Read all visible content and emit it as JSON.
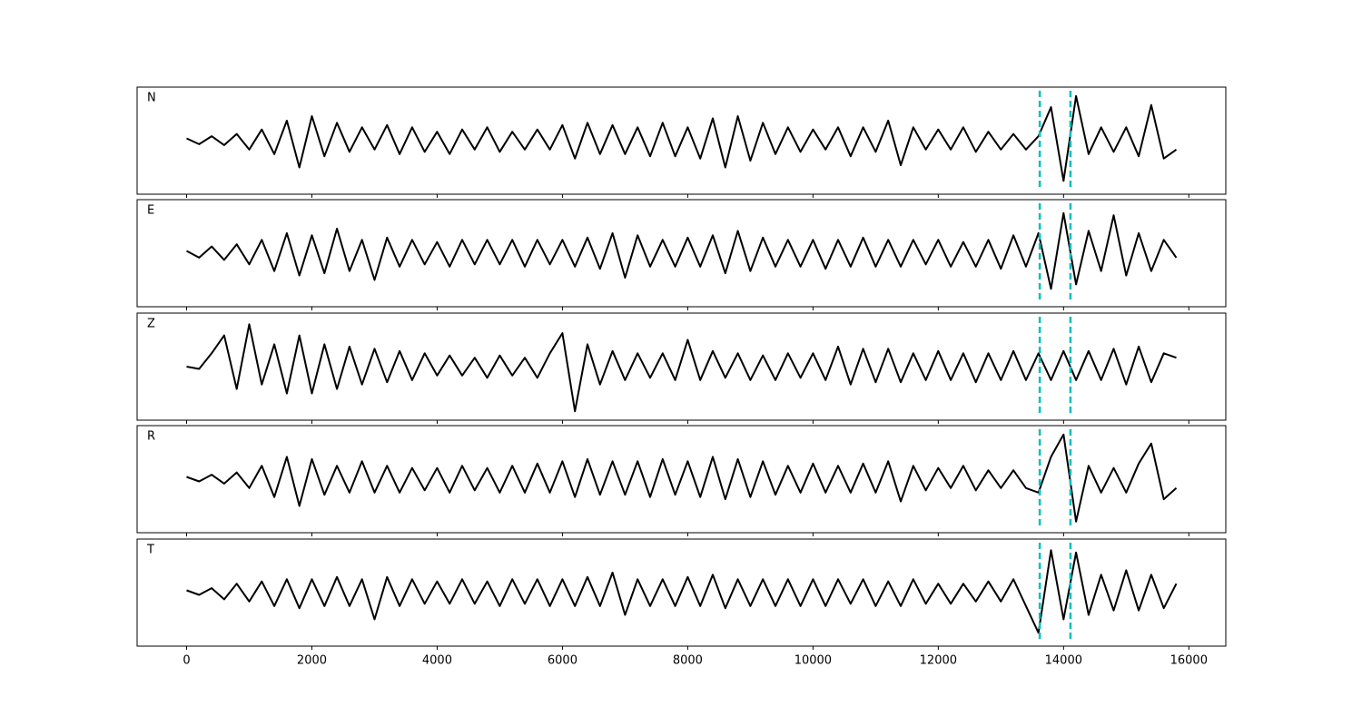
{
  "chart_data": {
    "type": "line",
    "layout": "stacked",
    "x": [
      0,
      200,
      400,
      600,
      800,
      1000,
      1200,
      1400,
      1600,
      1800,
      2000,
      2200,
      2400,
      2600,
      2800,
      3000,
      3200,
      3400,
      3600,
      3800,
      4000,
      4200,
      4400,
      4600,
      4800,
      5000,
      5200,
      5400,
      5600,
      5800,
      6000,
      6200,
      6400,
      6600,
      6800,
      7000,
      7200,
      7400,
      7600,
      7800,
      8000,
      8200,
      8400,
      8600,
      8800,
      9000,
      9200,
      9400,
      9600,
      9800,
      10000,
      10200,
      10400,
      10600,
      10800,
      11000,
      11200,
      11400,
      11600,
      11800,
      12000,
      12200,
      12400,
      12600,
      12800,
      13000,
      13200,
      13400,
      13600,
      13800,
      14000,
      14200,
      14400,
      14600,
      14800,
      15000,
      15200,
      15400,
      15600,
      15800
    ],
    "series": [
      {
        "name": "N",
        "color": "#000000",
        "values": [
          0.05,
          -0.08,
          0.1,
          -0.1,
          0.15,
          -0.2,
          0.25,
          -0.3,
          0.45,
          -0.6,
          0.55,
          -0.35,
          0.4,
          -0.25,
          0.3,
          -0.2,
          0.35,
          -0.3,
          0.3,
          -0.25,
          0.2,
          -0.3,
          0.25,
          -0.2,
          0.3,
          -0.25,
          0.2,
          -0.2,
          0.25,
          -0.2,
          0.35,
          -0.4,
          0.4,
          -0.3,
          0.35,
          -0.3,
          0.3,
          -0.35,
          0.4,
          -0.35,
          0.3,
          -0.4,
          0.5,
          -0.6,
          0.55,
          -0.45,
          0.4,
          -0.3,
          0.3,
          -0.25,
          0.25,
          -0.2,
          0.3,
          -0.35,
          0.3,
          -0.25,
          0.45,
          -0.55,
          0.3,
          -0.2,
          0.25,
          -0.2,
          0.3,
          -0.25,
          0.2,
          -0.2,
          0.15,
          -0.2,
          0.1,
          0.75,
          -0.9,
          1.0,
          -0.3,
          0.3,
          -0.25,
          0.3,
          -0.35,
          0.8,
          -0.4,
          -0.2
        ]
      },
      {
        "name": "E",
        "color": "#000000",
        "values": [
          0.05,
          -0.1,
          0.15,
          -0.15,
          0.2,
          -0.25,
          0.3,
          -0.4,
          0.45,
          -0.5,
          0.4,
          -0.45,
          0.55,
          -0.4,
          0.3,
          -0.6,
          0.35,
          -0.3,
          0.3,
          -0.25,
          0.25,
          -0.3,
          0.3,
          -0.25,
          0.3,
          -0.25,
          0.3,
          -0.3,
          0.3,
          -0.25,
          0.3,
          -0.3,
          0.35,
          -0.35,
          0.45,
          -0.55,
          0.4,
          -0.3,
          0.3,
          -0.3,
          0.35,
          -0.3,
          0.4,
          -0.45,
          0.5,
          -0.4,
          0.35,
          -0.3,
          0.3,
          -0.3,
          0.3,
          -0.35,
          0.3,
          -0.3,
          0.35,
          -0.3,
          0.3,
          -0.3,
          0.3,
          -0.25,
          0.3,
          -0.3,
          0.25,
          -0.3,
          0.3,
          -0.35,
          0.4,
          -0.3,
          0.45,
          -0.8,
          0.9,
          -0.7,
          0.5,
          -0.4,
          0.85,
          -0.5,
          0.45,
          -0.4,
          0.3,
          -0.1
        ]
      },
      {
        "name": "Z",
        "color": "#000000",
        "values": [
          0.0,
          -0.05,
          0.3,
          0.7,
          -0.5,
          0.95,
          -0.4,
          0.5,
          -0.6,
          0.7,
          -0.6,
          0.5,
          -0.5,
          0.45,
          -0.4,
          0.4,
          -0.35,
          0.35,
          -0.3,
          0.3,
          -0.2,
          0.25,
          -0.2,
          0.2,
          -0.25,
          0.25,
          -0.2,
          0.2,
          -0.25,
          0.3,
          0.75,
          -1.0,
          0.5,
          -0.4,
          0.35,
          -0.3,
          0.3,
          -0.25,
          0.3,
          -0.3,
          0.6,
          -0.3,
          0.35,
          -0.25,
          0.3,
          -0.3,
          0.25,
          -0.3,
          0.3,
          -0.25,
          0.3,
          -0.3,
          0.45,
          -0.4,
          0.4,
          -0.35,
          0.4,
          -0.35,
          0.3,
          -0.3,
          0.35,
          -0.3,
          0.3,
          -0.35,
          0.3,
          -0.3,
          0.35,
          -0.3,
          0.3,
          -0.3,
          0.35,
          -0.3,
          0.35,
          -0.3,
          0.4,
          -0.4,
          0.45,
          -0.35,
          0.3,
          0.2
        ]
      },
      {
        "name": "R",
        "color": "#000000",
        "values": [
          0.05,
          -0.05,
          0.1,
          -0.1,
          0.15,
          -0.2,
          0.3,
          -0.4,
          0.5,
          -0.6,
          0.45,
          -0.35,
          0.3,
          -0.3,
          0.4,
          -0.3,
          0.3,
          -0.3,
          0.25,
          -0.25,
          0.25,
          -0.3,
          0.3,
          -0.25,
          0.25,
          -0.3,
          0.3,
          -0.3,
          0.35,
          -0.3,
          0.4,
          -0.4,
          0.45,
          -0.35,
          0.4,
          -0.35,
          0.4,
          -0.4,
          0.45,
          -0.35,
          0.4,
          -0.4,
          0.5,
          -0.45,
          0.45,
          -0.4,
          0.4,
          -0.35,
          0.3,
          -0.3,
          0.35,
          -0.3,
          0.3,
          -0.3,
          0.35,
          -0.3,
          0.4,
          -0.5,
          0.3,
          -0.25,
          0.25,
          -0.2,
          0.3,
          -0.25,
          0.2,
          -0.2,
          0.2,
          -0.2,
          -0.3,
          0.5,
          1.0,
          -0.95,
          0.3,
          -0.3,
          0.25,
          -0.3,
          0.35,
          0.8,
          -0.45,
          -0.2
        ]
      },
      {
        "name": "T",
        "color": "#000000",
        "values": [
          0.05,
          -0.05,
          0.1,
          -0.15,
          0.2,
          -0.2,
          0.25,
          -0.3,
          0.3,
          -0.35,
          0.3,
          -0.3,
          0.35,
          -0.3,
          0.3,
          -0.6,
          0.35,
          -0.3,
          0.3,
          -0.25,
          0.25,
          -0.25,
          0.3,
          -0.25,
          0.25,
          -0.3,
          0.3,
          -0.25,
          0.3,
          -0.3,
          0.3,
          -0.3,
          0.35,
          -0.3,
          0.45,
          -0.5,
          0.3,
          -0.3,
          0.3,
          -0.3,
          0.35,
          -0.3,
          0.4,
          -0.35,
          0.3,
          -0.3,
          0.3,
          -0.3,
          0.3,
          -0.3,
          0.3,
          -0.3,
          0.3,
          -0.25,
          0.3,
          -0.3,
          0.25,
          -0.3,
          0.3,
          -0.25,
          0.2,
          -0.25,
          0.2,
          -0.2,
          0.25,
          -0.2,
          0.3,
          -0.3,
          -0.9,
          0.95,
          -0.6,
          0.9,
          -0.5,
          0.4,
          -0.4,
          0.5,
          -0.4,
          0.4,
          -0.35,
          0.2
        ]
      }
    ],
    "vlines": [
      13620,
      14110
    ],
    "vline_color": "#00bfbf",
    "xlim": [
      -790,
      16590
    ],
    "xticks": [
      0,
      2000,
      4000,
      6000,
      8000,
      10000,
      12000,
      14000,
      16000
    ],
    "ylim": [
      -1.2,
      1.2
    ]
  }
}
